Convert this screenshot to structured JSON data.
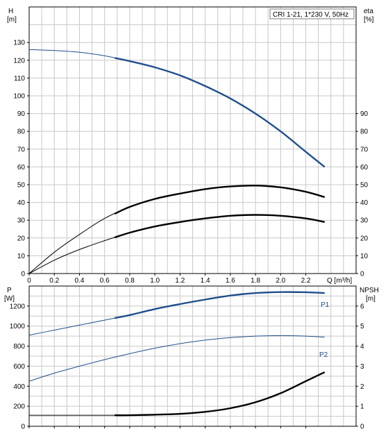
{
  "chart_data": [
    {
      "type": "line",
      "panel": "top",
      "title_box": "CRI 1-21, 1*230 V, 50Hz",
      "left_axis": {
        "label": "H",
        "unit": "[m]",
        "range": [
          0,
          150
        ],
        "ticks": [
          0,
          10,
          20,
          30,
          40,
          50,
          60,
          70,
          80,
          90,
          100,
          110,
          120,
          130
        ]
      },
      "right_axis": {
        "label": "eta",
        "unit": "[%]",
        "range": [
          0,
          150
        ],
        "ticks": [
          0,
          10,
          20,
          30,
          40,
          50,
          60,
          70,
          80,
          90
        ]
      },
      "x_axis": {
        "label": "Q [m³/h]",
        "range": [
          0,
          2.6
        ],
        "ticks": [
          0,
          0.2,
          0.4,
          0.6,
          0.8,
          1.0,
          1.2,
          1.4,
          1.6,
          1.8,
          2.0,
          2.2
        ],
        "tick_labels": [
          "0",
          "0.2",
          "0.4",
          "0.6",
          "0.8",
          "1.0",
          "1.2",
          "1.4",
          "1.6",
          "1.8",
          "2.0",
          "2.2"
        ]
      },
      "grid": true,
      "series": [
        {
          "name": "",
          "color": "#1f4e8c",
          "axis": "left",
          "highlight_range": [
            0.68,
            2.35
          ],
          "x": [
            0,
            0.2,
            0.4,
            0.6,
            0.8,
            1.0,
            1.2,
            1.4,
            1.6,
            1.8,
            2.0,
            2.2,
            2.35
          ],
          "y": [
            126,
            125.5,
            124.5,
            122.5,
            119.5,
            116,
            111.5,
            105.5,
            98.5,
            90,
            80,
            68.5,
            60
          ]
        },
        {
          "name": "",
          "color": "#000000",
          "axis": "right",
          "highlight_range": [
            0.68,
            2.35
          ],
          "x": [
            0,
            0.2,
            0.4,
            0.6,
            0.8,
            1.0,
            1.2,
            1.4,
            1.6,
            1.8,
            2.0,
            2.2,
            2.35
          ],
          "y": [
            0,
            12,
            22,
            31,
            37.5,
            42,
            45,
            47.5,
            49,
            49.5,
            48.5,
            46,
            43
          ]
        },
        {
          "name": "",
          "color": "#000000",
          "axis": "right",
          "highlight_range": [
            0.68,
            2.35
          ],
          "x": [
            0,
            0.2,
            0.4,
            0.6,
            0.8,
            1.0,
            1.2,
            1.4,
            1.6,
            1.8,
            2.0,
            2.2,
            2.35
          ],
          "y": [
            0,
            7.5,
            13.5,
            18.5,
            23,
            26.5,
            29,
            31,
            32.5,
            33,
            32.5,
            31,
            29
          ]
        }
      ]
    },
    {
      "type": "line",
      "panel": "bottom",
      "left_axis": {
        "label": "P",
        "unit": "[W]",
        "range": [
          0,
          1400
        ],
        "ticks": [
          0,
          200,
          400,
          600,
          800,
          1000,
          1200
        ]
      },
      "right_axis": {
        "label": "NPSH",
        "unit": "[m]",
        "range": [
          0,
          7
        ],
        "ticks": [
          0,
          1,
          2,
          3,
          4,
          5,
          6
        ]
      },
      "x_axis": {
        "range": [
          0,
          2.6
        ],
        "ticks": [
          0,
          0.2,
          0.4,
          0.6,
          0.8,
          1.0,
          1.2,
          1.4,
          1.6,
          1.8,
          2.0,
          2.2
        ]
      },
      "grid": true,
      "series": [
        {
          "name": "P1",
          "color": "#1f4e8c",
          "axis": "left",
          "highlight_range": [
            0.68,
            2.35
          ],
          "x": [
            0,
            0.2,
            0.4,
            0.6,
            0.8,
            1.0,
            1.2,
            1.4,
            1.6,
            1.8,
            2.0,
            2.2,
            2.35
          ],
          "y": [
            910,
            960,
            1010,
            1060,
            1110,
            1170,
            1220,
            1265,
            1305,
            1330,
            1340,
            1338,
            1330
          ]
        },
        {
          "name": "P2",
          "color": "#1f4e8c",
          "axis": "left",
          "highlight_range": [],
          "x": [
            0,
            0.2,
            0.4,
            0.6,
            0.8,
            1.0,
            1.2,
            1.4,
            1.6,
            1.8,
            2.0,
            2.2,
            2.35
          ],
          "y": [
            450,
            530,
            600,
            665,
            725,
            780,
            825,
            860,
            885,
            900,
            905,
            900,
            890
          ]
        },
        {
          "name": "",
          "color": "#000000",
          "axis": "right",
          "highlight_range": [
            0.68,
            2.35
          ],
          "x": [
            0,
            0.2,
            0.4,
            0.6,
            0.8,
            1.0,
            1.2,
            1.4,
            1.6,
            1.8,
            2.0,
            2.2,
            2.35
          ],
          "y": [
            0.55,
            0.55,
            0.55,
            0.55,
            0.55,
            0.58,
            0.62,
            0.72,
            0.9,
            1.2,
            1.65,
            2.25,
            2.7
          ]
        }
      ]
    }
  ]
}
